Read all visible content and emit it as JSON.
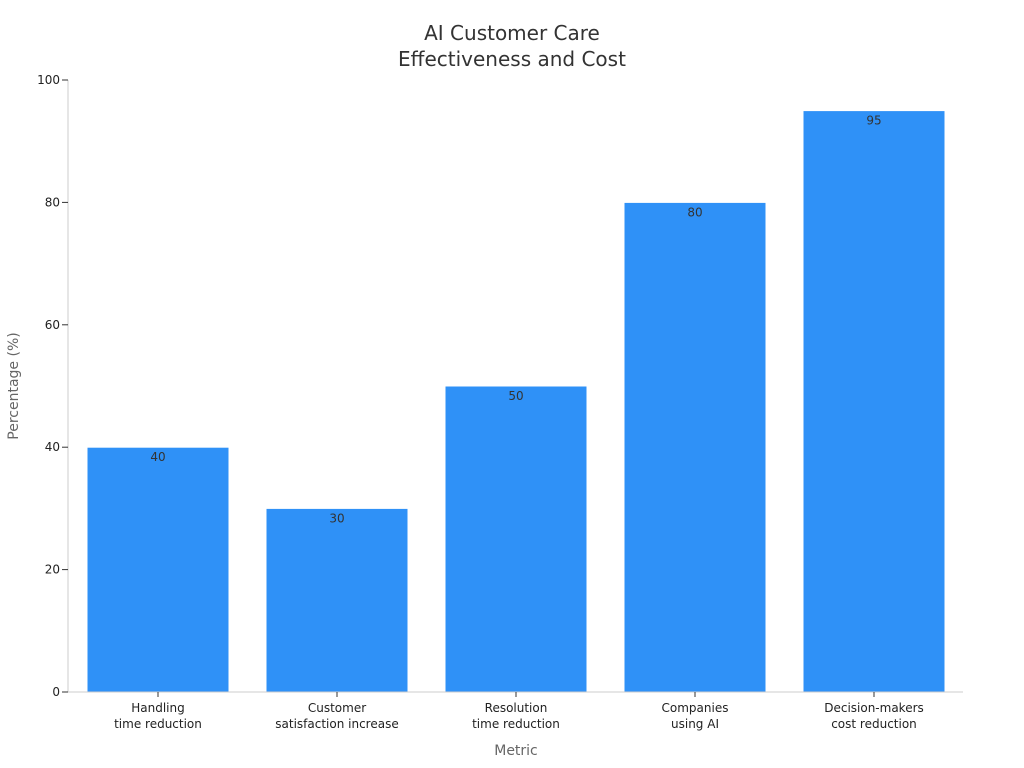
{
  "chart_data": {
    "type": "bar",
    "title": [
      "AI Customer Care",
      "Effectiveness and Cost"
    ],
    "xlabel": "Metric",
    "ylabel": "Percentage (%)",
    "ylim": [
      0,
      100
    ],
    "yticks": [
      0,
      20,
      40,
      60,
      80,
      100
    ],
    "categories": [
      [
        "Handling",
        "time reduction"
      ],
      [
        "Customer",
        "satisfaction increase"
      ],
      [
        "Resolution",
        "time reduction"
      ],
      [
        "Companies",
        "using AI"
      ],
      [
        "Decision-makers",
        "cost reduction"
      ]
    ],
    "values": [
      40,
      30,
      50,
      80,
      95
    ],
    "data_labels": [
      "40",
      "30",
      "50",
      "80",
      "95"
    ],
    "bar_color": "#2f91f7",
    "grid": false,
    "legend": "none"
  }
}
